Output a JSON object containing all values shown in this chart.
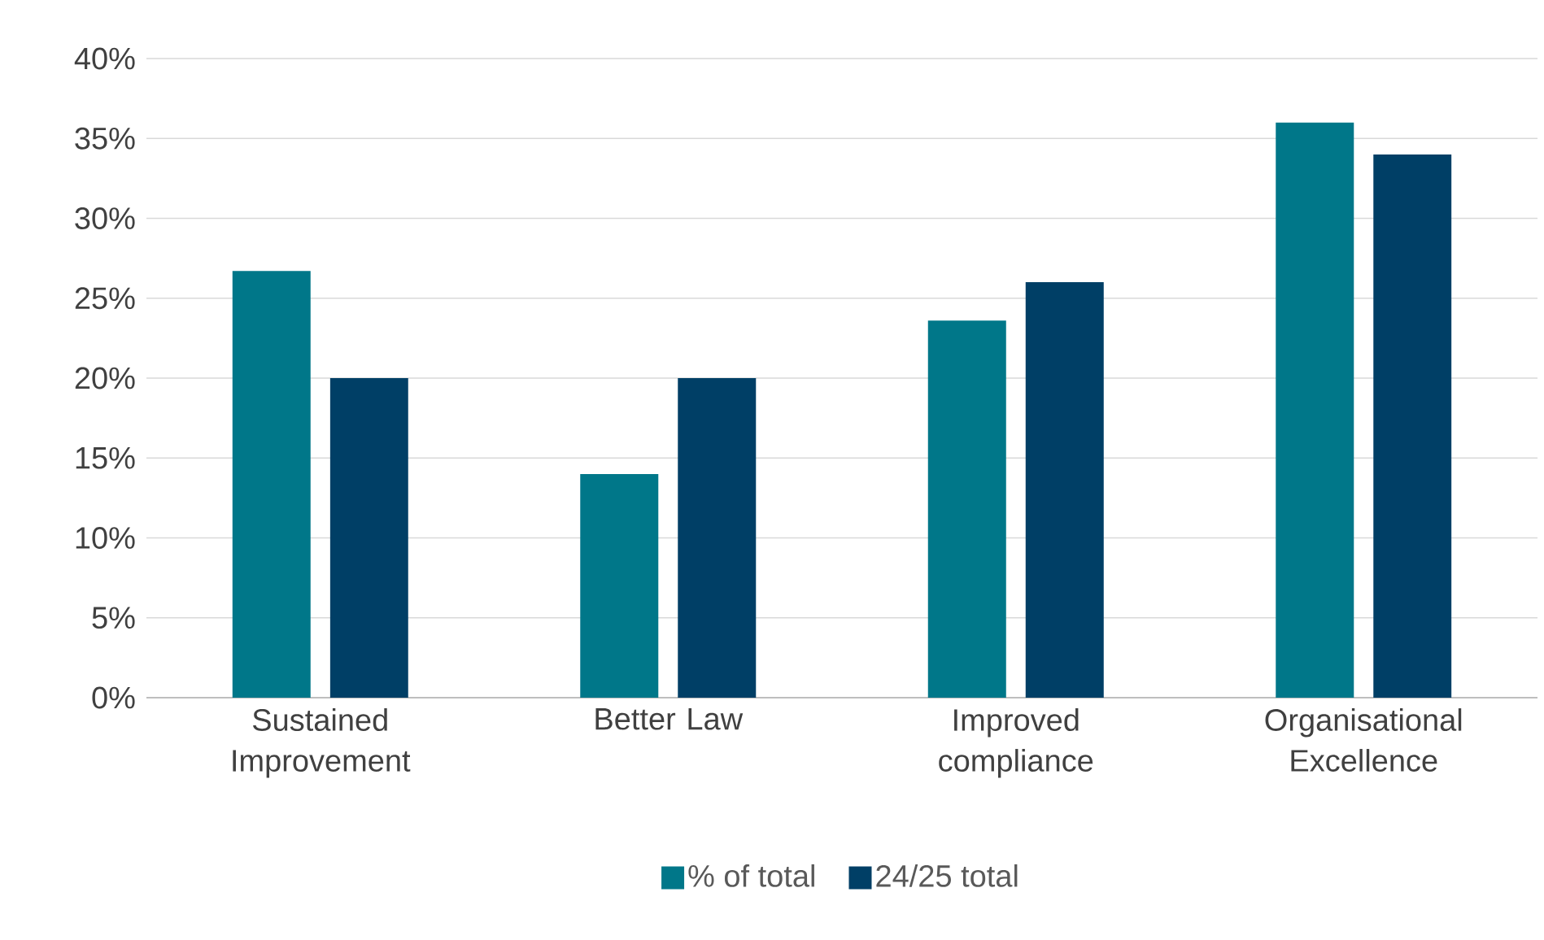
{
  "chart_data": {
    "type": "bar",
    "categories": [
      "Sustained Improvement",
      "Better Law",
      "Improved compliance",
      "Organisational Excellence"
    ],
    "series": [
      {
        "name": "% of total",
        "color": "#007789",
        "values": [
          26.7,
          14,
          23.6,
          36
        ]
      },
      {
        "name": "24/25 total",
        "color": "#003f66",
        "values": [
          20,
          20,
          26,
          34
        ]
      }
    ],
    "ylim": [
      0,
      40
    ],
    "yticks": [
      {
        "value": 0,
        "label": "0%"
      },
      {
        "value": 5,
        "label": "5%"
      },
      {
        "value": 10,
        "label": "10%"
      },
      {
        "value": 15,
        "label": "15%"
      },
      {
        "value": 20,
        "label": "20%"
      },
      {
        "value": 25,
        "label": "25%"
      },
      {
        "value": 30,
        "label": "30%"
      },
      {
        "value": 35,
        "label": "35%"
      },
      {
        "value": 40,
        "label": "40%"
      }
    ],
    "grid": "y",
    "legend": "bottom"
  }
}
